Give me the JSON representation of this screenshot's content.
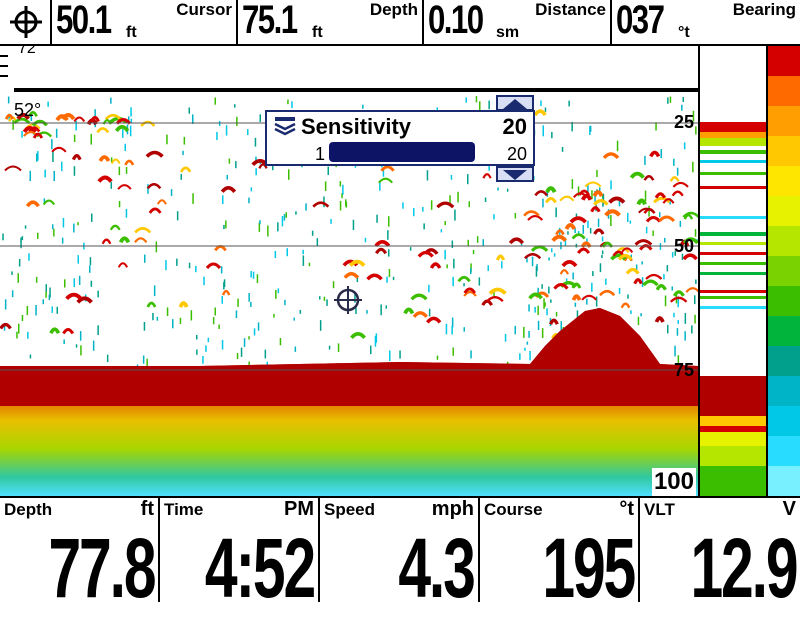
{
  "top_bar": {
    "cursor": {
      "value": "50.1",
      "unit": "ft",
      "label": "Cursor"
    },
    "depth": {
      "value": "75.1",
      "unit": "ft",
      "label": "Depth"
    },
    "distance": {
      "value": "0.10",
      "unit": "sm",
      "label": "Distance"
    },
    "bearing": {
      "value": "037",
      "unit": "°t",
      "label": "Bearing"
    }
  },
  "sonar": {
    "temperature": "52°",
    "depth_labels": [
      "25",
      "50",
      "75",
      "100"
    ],
    "surface_label": "72"
  },
  "sensitivity_popup": {
    "title": "Sensitivity",
    "current": "20",
    "min": "1",
    "max": "20",
    "level": 1.0
  },
  "bottom_bar": {
    "depth": {
      "label": "Depth",
      "unit": "ft",
      "value": "77.8"
    },
    "time": {
      "label": "Time",
      "unit": "PM",
      "value": "4:52"
    },
    "speed": {
      "label": "Speed",
      "unit": "mph",
      "value": "4.3"
    },
    "course": {
      "label": "Course",
      "unit": "°t",
      "value": "195"
    },
    "vlt": {
      "label": "VLT",
      "unit": "V",
      "value": "12.9"
    }
  },
  "colors": {
    "bottom_red": "#b00000",
    "popup_border": "#1a2a6e",
    "bar_fill": "#0d1466"
  },
  "palette_colors": [
    "#d40000",
    "#ff6a00",
    "#ff9e00",
    "#ffc800",
    "#ffe600",
    "#e6f200",
    "#b4e600",
    "#7ad200",
    "#3cbe00",
    "#00b43c",
    "#00a08c",
    "#00b4c8",
    "#00c8e6",
    "#28dcff",
    "#78f0ff"
  ]
}
